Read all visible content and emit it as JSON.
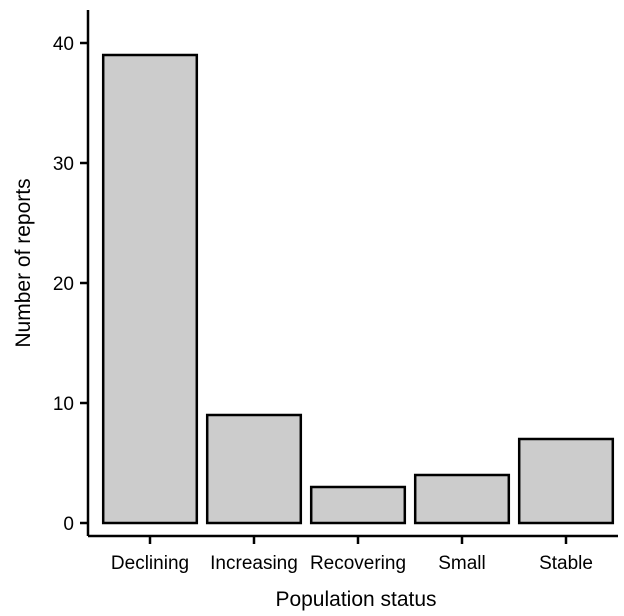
{
  "chart_data": {
    "type": "bar",
    "categories": [
      "Declining",
      "Increasing",
      "Recovering",
      "Small",
      "Stable"
    ],
    "values": [
      39,
      9,
      3,
      4,
      7
    ],
    "xlabel": "Population status",
    "ylabel": "Number of reports",
    "ylim": [
      0,
      40
    ],
    "yticks": [
      0,
      10,
      20,
      30,
      40
    ],
    "grid": false,
    "legend": false,
    "bar_color": "#cccccc",
    "edge_color": "#000000"
  }
}
